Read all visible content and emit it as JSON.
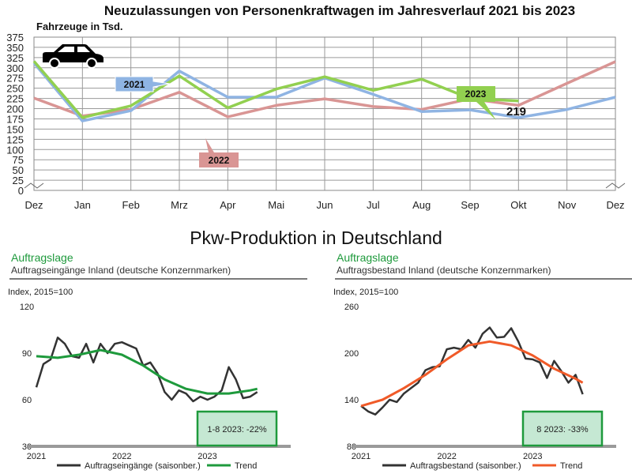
{
  "chart_data": [
    {
      "type": "line",
      "title": "Neuzulassungen von Personenkraftwagen im Jahresverlauf 2021 bis 2023",
      "ylabel": "Fahrzeuge in Tsd.",
      "categories": [
        "Dez",
        "Jan",
        "Feb",
        "Mrz",
        "Apr",
        "Mai",
        "Jun",
        "Jul",
        "Aug",
        "Sep",
        "Okt",
        "Nov",
        "Dez"
      ],
      "ylim": [
        0,
        375
      ],
      "yticks": [
        0,
        25,
        50,
        75,
        100,
        125,
        150,
        175,
        200,
        225,
        250,
        275,
        300,
        325,
        350,
        375
      ],
      "grid": true,
      "series": [
        {
          "name": "2021",
          "color": "#8fb4e3",
          "values": [
            312,
            170,
            195,
            292,
            228,
            228,
            275,
            235,
            193,
            197,
            178,
            198,
            228
          ]
        },
        {
          "name": "2022",
          "color": "#d99594",
          "values": [
            226,
            182,
            198,
            240,
            180,
            208,
            224,
            205,
            198,
            224,
            208,
            262,
            315
          ]
        },
        {
          "name": "2023",
          "color": "#92d050",
          "values": [
            316,
            178,
            207,
            280,
            202,
            248,
            278,
            245,
            272,
            225,
            219,
            null,
            null
          ]
        }
      ],
      "annotations": {
        "last_value": "219"
      }
    },
    {
      "type": "line",
      "title": "Auftragslage",
      "subtitle": "Auftragseingänge Inland (deutsche Konzernmarken)",
      "ylabel": "Index, 2015=100",
      "ylim": [
        30,
        120
      ],
      "yticks": [
        30,
        60,
        90,
        120
      ],
      "xticks": [
        "2021",
        "2022",
        "2023"
      ],
      "series": [
        {
          "name": "Auftragseingänge (saisonber.)",
          "color": "#333333",
          "x": [
            2021.0,
            2021.083,
            2021.167,
            2021.25,
            2021.333,
            2021.417,
            2021.5,
            2021.583,
            2021.667,
            2021.75,
            2021.833,
            2021.917,
            2022.0,
            2022.083,
            2022.167,
            2022.25,
            2022.333,
            2022.417,
            2022.5,
            2022.583,
            2022.667,
            2022.75,
            2022.833,
            2022.917,
            2023.0,
            2023.083,
            2023.167,
            2023.25,
            2023.333,
            2023.417,
            2023.5,
            2023.583
          ],
          "values": [
            68,
            83,
            86,
            100,
            96,
            88,
            87,
            96,
            84,
            96,
            90,
            96,
            97,
            95,
            93,
            82,
            84,
            77,
            65,
            60,
            66,
            64,
            59,
            62,
            60,
            62,
            66,
            81,
            73,
            61,
            62,
            65
          ]
        },
        {
          "name": "Trend",
          "color": "#1e9a3c",
          "x": [
            2021.0,
            2021.25,
            2021.5,
            2021.75,
            2022.0,
            2022.25,
            2022.5,
            2022.75,
            2023.0,
            2023.25,
            2023.5,
            2023.583
          ],
          "values": [
            88,
            87,
            89,
            92,
            89,
            82,
            73,
            67,
            64,
            64,
            66,
            67
          ]
        }
      ],
      "annotations": {
        "box": "1-8 2023: -22%"
      }
    },
    {
      "type": "line",
      "title": "Auftragslage",
      "subtitle": "Auftragsbestand Inland (deutsche Konzernmarken)",
      "ylabel": "Index, 2015=100",
      "ylim": [
        80,
        260
      ],
      "yticks": [
        80,
        140,
        200,
        260
      ],
      "xticks": [
        "2021",
        "2022",
        "2023"
      ],
      "series": [
        {
          "name": "Auftragsbestand (saisonber.)",
          "color": "#333333",
          "x": [
            2021.0,
            2021.083,
            2021.167,
            2021.25,
            2021.333,
            2021.417,
            2021.5,
            2021.583,
            2021.667,
            2021.75,
            2021.833,
            2021.917,
            2022.0,
            2022.083,
            2022.167,
            2022.25,
            2022.333,
            2022.417,
            2022.5,
            2022.583,
            2022.667,
            2022.75,
            2022.833,
            2022.917,
            2023.0,
            2023.083,
            2023.167,
            2023.25,
            2023.333,
            2023.417,
            2023.5,
            2023.583
          ],
          "values": [
            132,
            125,
            121,
            130,
            140,
            137,
            148,
            155,
            162,
            178,
            182,
            183,
            205,
            207,
            205,
            217,
            207,
            225,
            233,
            220,
            221,
            232,
            215,
            193,
            192,
            188,
            168,
            190,
            177,
            162,
            172,
            147
          ]
        },
        {
          "name": "Trend",
          "color": "#f05a28",
          "x": [
            2021.0,
            2021.25,
            2021.5,
            2021.75,
            2022.0,
            2022.25,
            2022.5,
            2022.75,
            2023.0,
            2023.25,
            2023.5,
            2023.583
          ],
          "values": [
            132,
            140,
            155,
            172,
            192,
            210,
            215,
            210,
            197,
            180,
            167,
            162
          ]
        }
      ],
      "annotations": {
        "box": "8 2023: -33%"
      }
    }
  ],
  "section_title": "Pkw-Produktion in Deutschland"
}
